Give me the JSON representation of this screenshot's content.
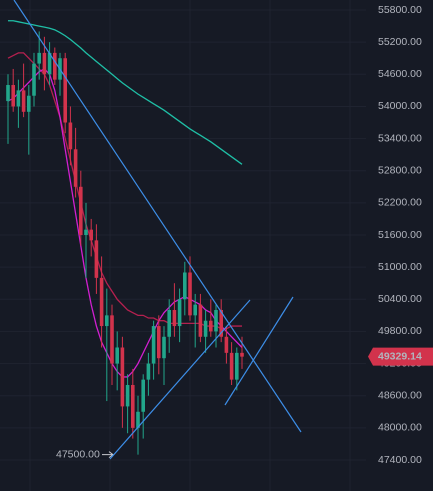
{
  "chart_data": {
    "type": "candlestick",
    "categories": [
      null,
      null,
      null,
      null,
      null,
      null,
      null,
      null,
      null,
      null,
      null,
      null,
      null,
      null,
      null,
      null,
      null,
      null,
      null,
      null,
      null,
      null,
      null,
      null,
      null,
      null,
      null,
      null,
      null,
      null,
      null,
      null,
      null,
      null,
      null,
      null,
      null,
      null,
      null,
      null,
      null,
      null,
      null,
      null,
      null,
      null
    ],
    "open": [
      54100,
      54400,
      54000,
      54300,
      53900,
      54200,
      54800,
      55000,
      54600,
      55000,
      54500,
      54900,
      53700,
      53200,
      52500,
      51600,
      51700,
      51500,
      50800,
      49900,
      50100,
      49200,
      49500,
      48400,
      48800,
      48000,
      48300,
      48900,
      49200,
      49900,
      49300,
      49700,
      50200,
      49900,
      50400,
      50900,
      50100,
      50300,
      49700,
      50000,
      49800,
      50200,
      49700,
      49400,
      48900,
      49400
    ],
    "high": [
      54600,
      54700,
      54500,
      54800,
      54400,
      55000,
      55400,
      55300,
      55200,
      55100,
      55000,
      55000,
      54000,
      53600,
      52800,
      52200,
      51900,
      51800,
      51200,
      50600,
      50300,
      49800,
      49700,
      49000,
      49100,
      48600,
      49000,
      49400,
      50000,
      50100,
      49900,
      50400,
      50700,
      50600,
      51100,
      51200,
      50500,
      50500,
      50200,
      50400,
      50300,
      50400,
      49900,
      49600,
      49500,
      49700
    ],
    "low": [
      53300,
      53900,
      53600,
      53800,
      53100,
      54000,
      54500,
      54300,
      54400,
      54400,
      54200,
      53500,
      52900,
      52300,
      51400,
      50800,
      51200,
      50500,
      49500,
      48500,
      48800,
      48700,
      48000,
      47900,
      47800,
      47500,
      47800,
      48600,
      48900,
      49000,
      48800,
      49400,
      49700,
      49600,
      50100,
      50000,
      49500,
      49600,
      49400,
      49700,
      49500,
      49600,
      49200,
      48800,
      48700,
      49100
    ],
    "close": [
      54400,
      54000,
      54300,
      53900,
      54200,
      54800,
      55000,
      54600,
      55000,
      54500,
      54900,
      53700,
      53200,
      52500,
      51600,
      51700,
      51500,
      50800,
      49900,
      50100,
      49200,
      49500,
      48400,
      48800,
      48000,
      48300,
      48900,
      49200,
      49900,
      49300,
      49700,
      50200,
      49900,
      50400,
      50900,
      50100,
      50300,
      49700,
      50000,
      49800,
      50200,
      49700,
      49400,
      48900,
      49400,
      49329.14
    ],
    "up_color": "#22a68b",
    "down_color": "#d2334c",
    "overlays": [
      {
        "color": "#1fbfa6",
        "values": [
          55600,
          55600,
          55580,
          55560,
          55540,
          55520,
          55500,
          55480,
          55460,
          55430,
          55380,
          55320,
          55250,
          55170,
          55090,
          55000,
          54920,
          54840,
          54760,
          54680,
          54600,
          54520,
          54440,
          54370,
          54300,
          54230,
          54170,
          54110,
          54050,
          53990,
          53930,
          53860,
          53790,
          53720,
          53650,
          53580,
          53520,
          53460,
          53400,
          53340,
          53270,
          53200,
          53130,
          53060,
          52990,
          52920
        ]
      },
      {
        "color": "#b5204f",
        "values": [
          54900,
          54950,
          55000,
          55000,
          54900,
          54800,
          54700,
          54600,
          54400,
          54100,
          53800,
          53400,
          53000,
          52600,
          52200,
          51800,
          51500,
          51200,
          50900,
          50700,
          50550,
          50400,
          50300,
          50200,
          50150,
          50100,
          50100,
          50050,
          50050,
          50000,
          50000,
          49950,
          49950,
          49950,
          49950,
          49950,
          49950,
          49950,
          49900,
          49900,
          49900,
          49850,
          49850,
          49900,
          49900,
          49900
        ]
      },
      {
        "color": "#d21fd0",
        "values": [
          54100,
          54150,
          54250,
          54350,
          54450,
          54550,
          54650,
          54700,
          54600,
          54300,
          53800,
          53200,
          52600,
          52000,
          51400,
          50800,
          50300,
          49900,
          49600,
          49400,
          49200,
          49050,
          48950,
          48950,
          49050,
          49200,
          49400,
          49600,
          49800,
          50000,
          50150,
          50250,
          50350,
          50400,
          50450,
          50400,
          50350,
          50300,
          50200,
          50150,
          50000,
          49900,
          49800,
          49700,
          49600,
          49500
        ]
      }
    ],
    "ylim": [
      46821,
      55987
    ],
    "yticks": [
      {
        "value": 55800,
        "label": "55800.00"
      },
      {
        "value": 55200,
        "label": "55200.00"
      },
      {
        "value": 54600,
        "label": "54600.00"
      },
      {
        "value": 54000,
        "label": "54000.00"
      },
      {
        "value": 53400,
        "label": "53400.00"
      },
      {
        "value": 52800,
        "label": "52800.00"
      },
      {
        "value": 52200,
        "label": "52200.00"
      },
      {
        "value": 51600,
        "label": "51600.00"
      },
      {
        "value": 51000,
        "label": "51000.00"
      },
      {
        "value": 50400,
        "label": "50400.00"
      },
      {
        "value": 49800,
        "label": "49800.00"
      },
      {
        "value": 49200,
        "label": "49200.00"
      },
      {
        "value": 48600,
        "label": "48600.00"
      },
      {
        "value": 48000,
        "label": "48000.00"
      },
      {
        "value": 47400,
        "label": "47400.00"
      }
    ],
    "grid": true,
    "low_marker": {
      "value": 47500,
      "label": "47500.00"
    },
    "last_price": {
      "value": 49329.14,
      "label": "49329.14"
    }
  }
}
